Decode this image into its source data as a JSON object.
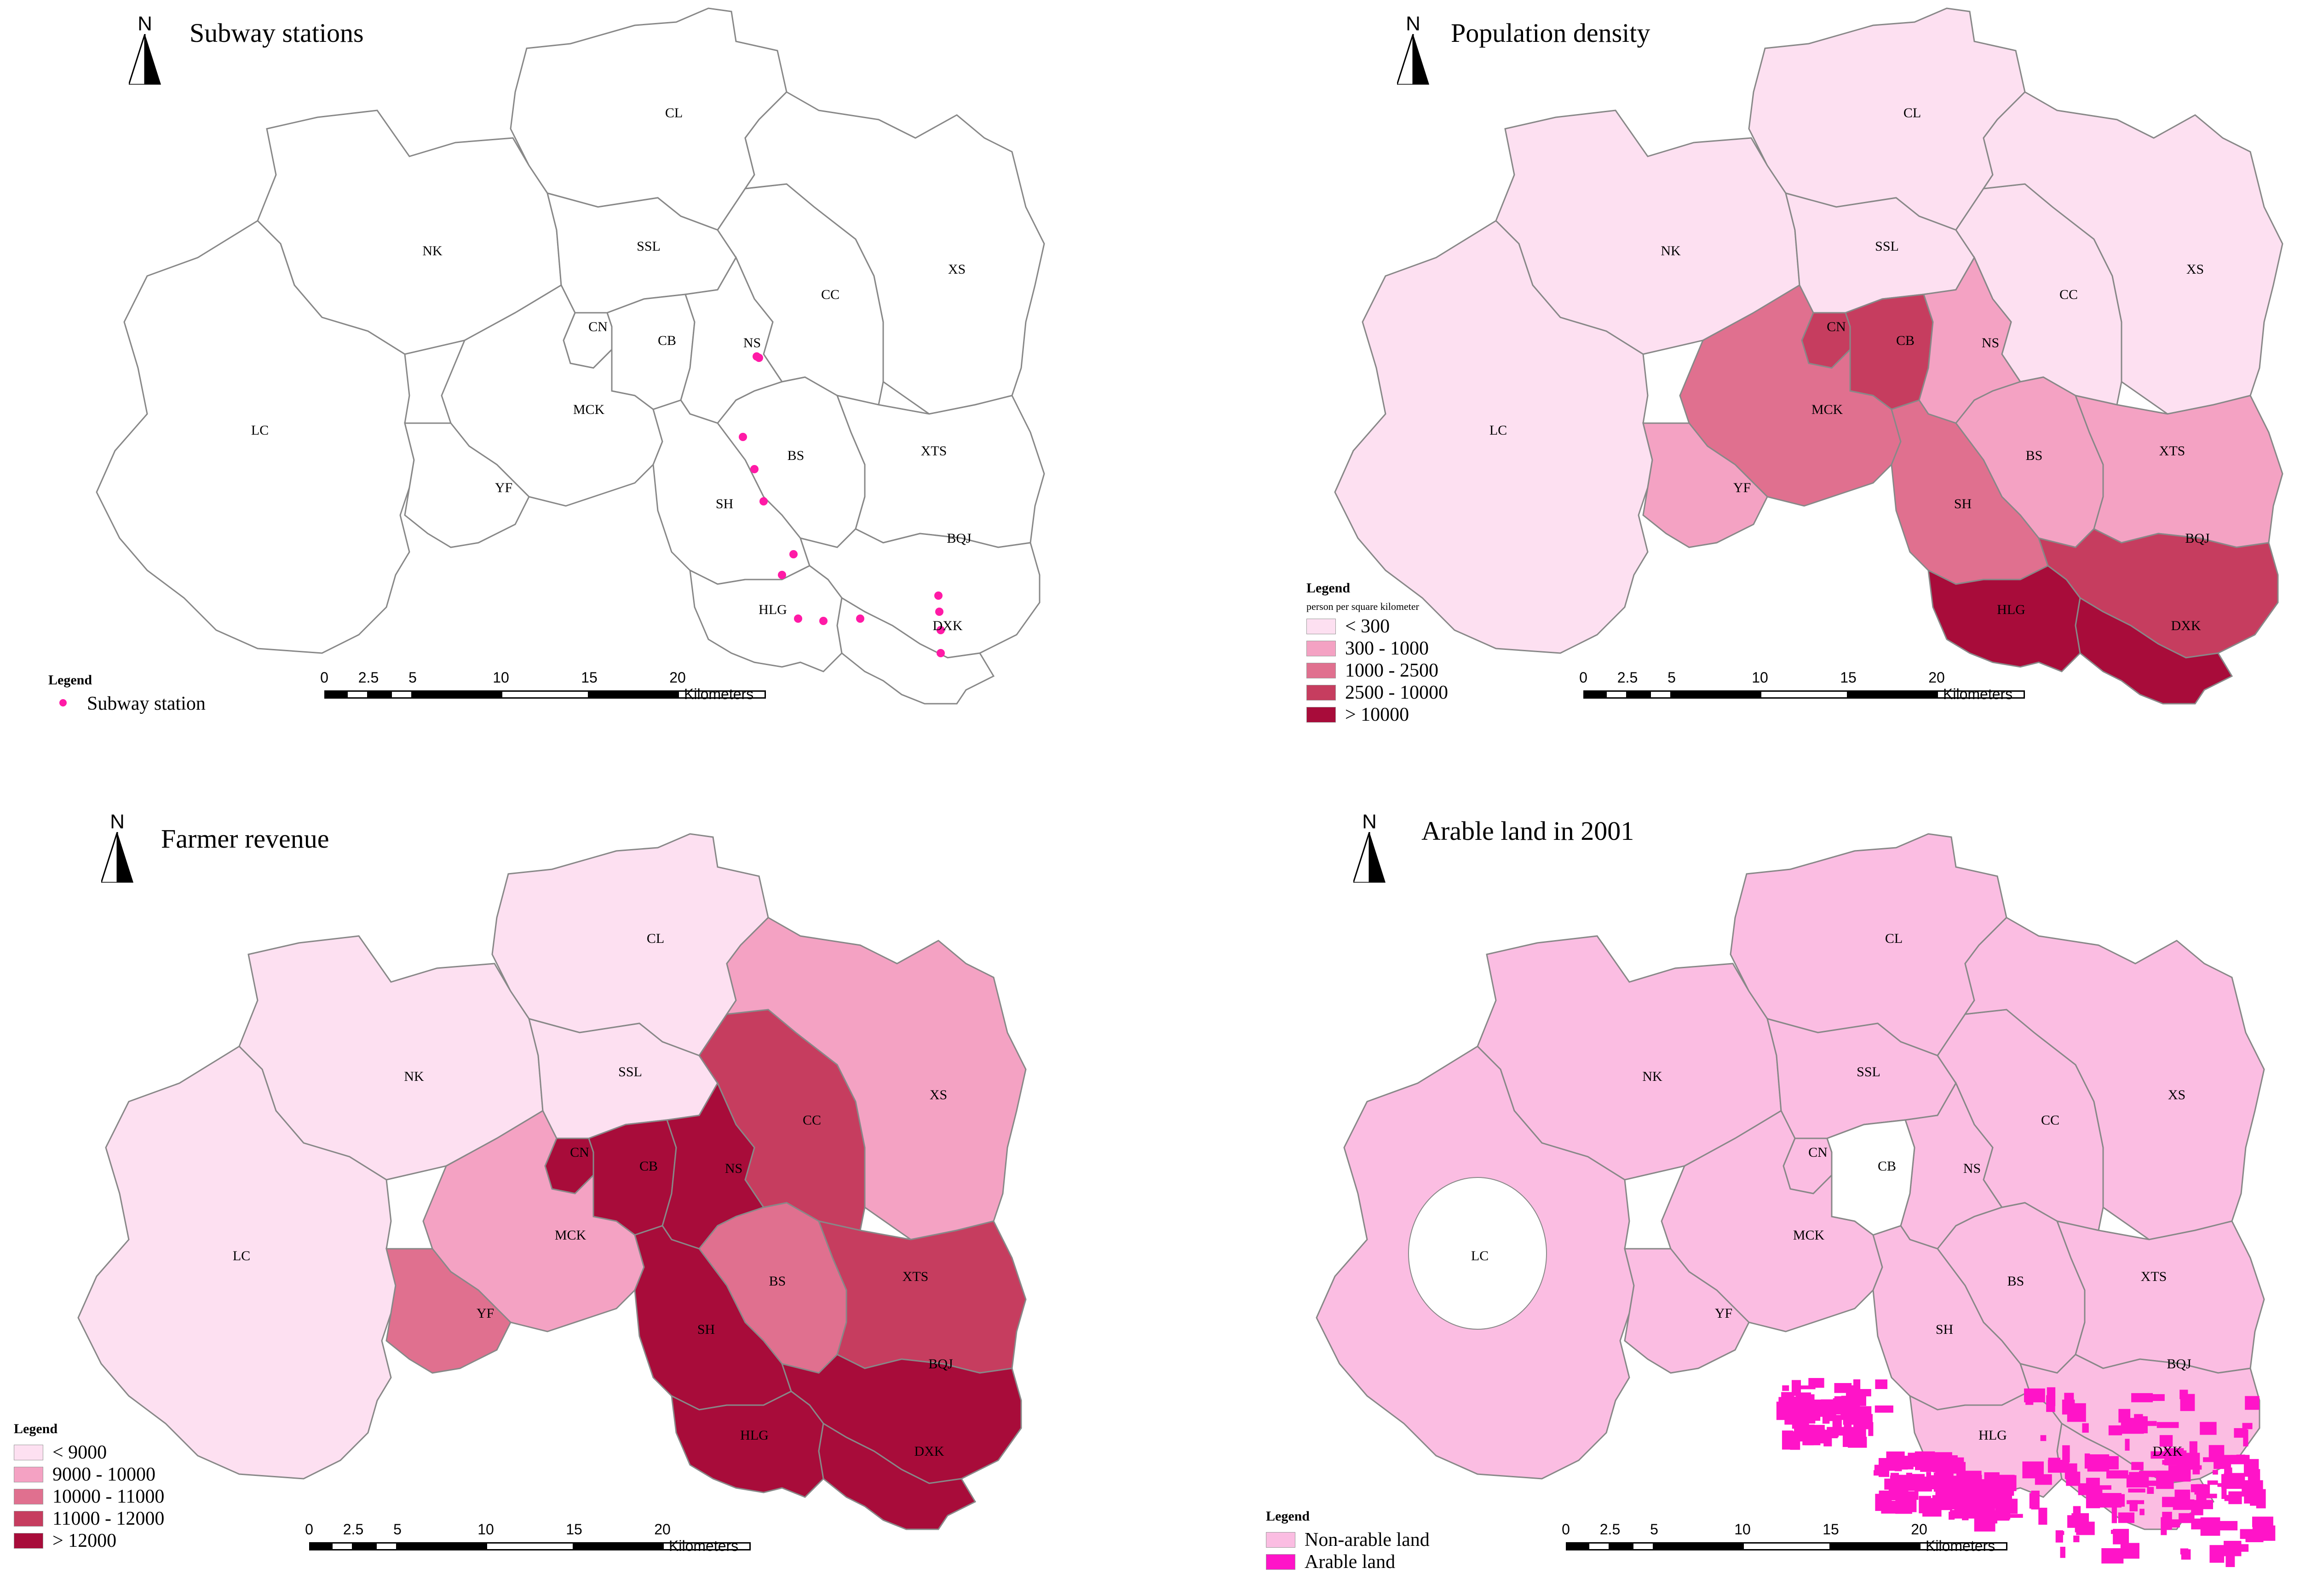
{
  "colors": {
    "outline": "#888888",
    "station": "#ff1aa6",
    "class1": "#fde0f1",
    "class2": "#f4a2c3",
    "class3": "#e0708f",
    "class4": "#c63d5f",
    "class5": "#a80c3a",
    "non_arable": "#fbbde2",
    "arable": "#ff14c8"
  },
  "district_labels": {
    "CL": "CL",
    "NK": "NK",
    "SSL": "SSL",
    "CC": "CC",
    "XS": "XS",
    "CN": "CN",
    "CB": "CB",
    "NS": "NS",
    "LC": "LC",
    "MCK": "MCK",
    "BS": "BS",
    "XTS": "XTS",
    "YF": "YF",
    "SH": "SH",
    "BQJ": "BQJ",
    "HLG": "HLG",
    "DXK": "DXK"
  },
  "scale": {
    "ticks": [
      "0",
      "2.5",
      "5",
      "10",
      "15",
      "20"
    ],
    "unit": "Kilometers"
  },
  "north_label": "N",
  "panels": {
    "subway": {
      "title": "Subway stations",
      "legend_title": "Legend",
      "legend_item": "Subway station"
    },
    "population": {
      "title": "Population density",
      "legend_title": "Legend",
      "legend_subtitle": "person per square kilometer",
      "legend_items": [
        "< 300",
        "300 - 1000",
        "1000 - 2500",
        "2500 - 10000",
        "> 10000"
      ],
      "classes": {
        "NK": 1,
        "CL": 1,
        "SSL": 1,
        "CC": 1,
        "XS": 1,
        "LC": 1,
        "NS": 2,
        "BS": 2,
        "XTS": 2,
        "YF": 2,
        "MCK": 3,
        "SH": 3,
        "CN": 4,
        "CB": 4,
        "BQJ": 4,
        "HLG": 5,
        "DXK": 5
      }
    },
    "revenue": {
      "title": "Farmer revenue",
      "legend_title": "Legend",
      "legend_items": [
        "< 9000",
        "9000 - 10000",
        "10000 - 11000",
        "11000 - 12000",
        "> 12000"
      ],
      "classes": {
        "NK": 1,
        "CL": 1,
        "SSL": 1,
        "LC": 1,
        "XS": 2,
        "MCK": 2,
        "YF": 3,
        "BS": 3,
        "CC": 4,
        "XTS": 4,
        "CN": 5,
        "CB": 5,
        "NS": 5,
        "SH": 5,
        "BQJ": 5,
        "HLG": 5,
        "DXK": 5
      }
    },
    "arable": {
      "title": "Arable land in 2001",
      "legend_title": "Legend",
      "legend_items": [
        "Non-arable land",
        "Arable land"
      ]
    }
  }
}
